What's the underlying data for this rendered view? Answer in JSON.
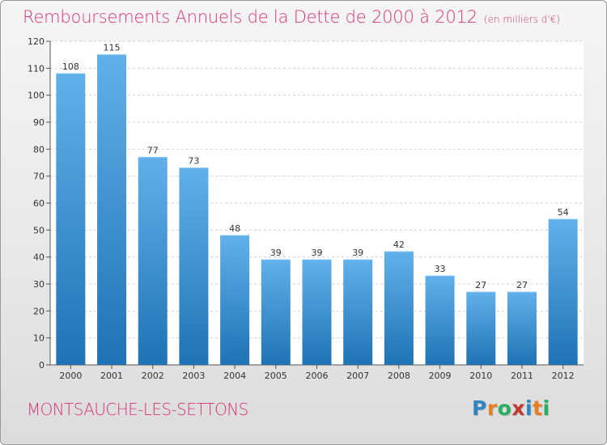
{
  "title": "Remboursements Annuels de la Dette de 2000 à 2012",
  "unit_note": "(en milliers d'€)",
  "commune": "MONTSAUCHE-LES-SETTONS",
  "logo": {
    "letters": [
      "P",
      "r",
      "o",
      "x",
      "i",
      "t",
      "i"
    ],
    "colors": [
      "#2e86c1",
      "#e67e22",
      "#27ae60",
      "#c0392b",
      "#2e86c1",
      "#e67e22",
      "#27ae60"
    ]
  },
  "colors": {
    "title": "#d6347a",
    "bar_light": "#62b0ea",
    "bar_dark": "#1f73b4",
    "grid": "#d0d0d0",
    "axis": "#555555"
  },
  "chart_data": {
    "type": "bar",
    "title": "Remboursements Annuels de la Dette de 2000 à 2012",
    "subtitle": "(en milliers d'€)",
    "categories": [
      "2000",
      "2001",
      "2002",
      "2003",
      "2004",
      "2005",
      "2006",
      "2007",
      "2008",
      "2009",
      "2010",
      "2011",
      "2012"
    ],
    "values": [
      108,
      115,
      77,
      73,
      48,
      39,
      39,
      39,
      42,
      33,
      27,
      27,
      54
    ],
    "data_labels": [
      "108",
      "115",
      "77",
      "73",
      "48",
      "39",
      "39",
      "39",
      "42",
      "33",
      "27",
      "27",
      "54"
    ],
    "yticks": [
      "0",
      "10",
      "20",
      "30",
      "40",
      "50",
      "60",
      "70",
      "80",
      "90",
      "100",
      "110",
      "120"
    ],
    "ylim": [
      0,
      120
    ],
    "grid": true,
    "legend": "none"
  }
}
